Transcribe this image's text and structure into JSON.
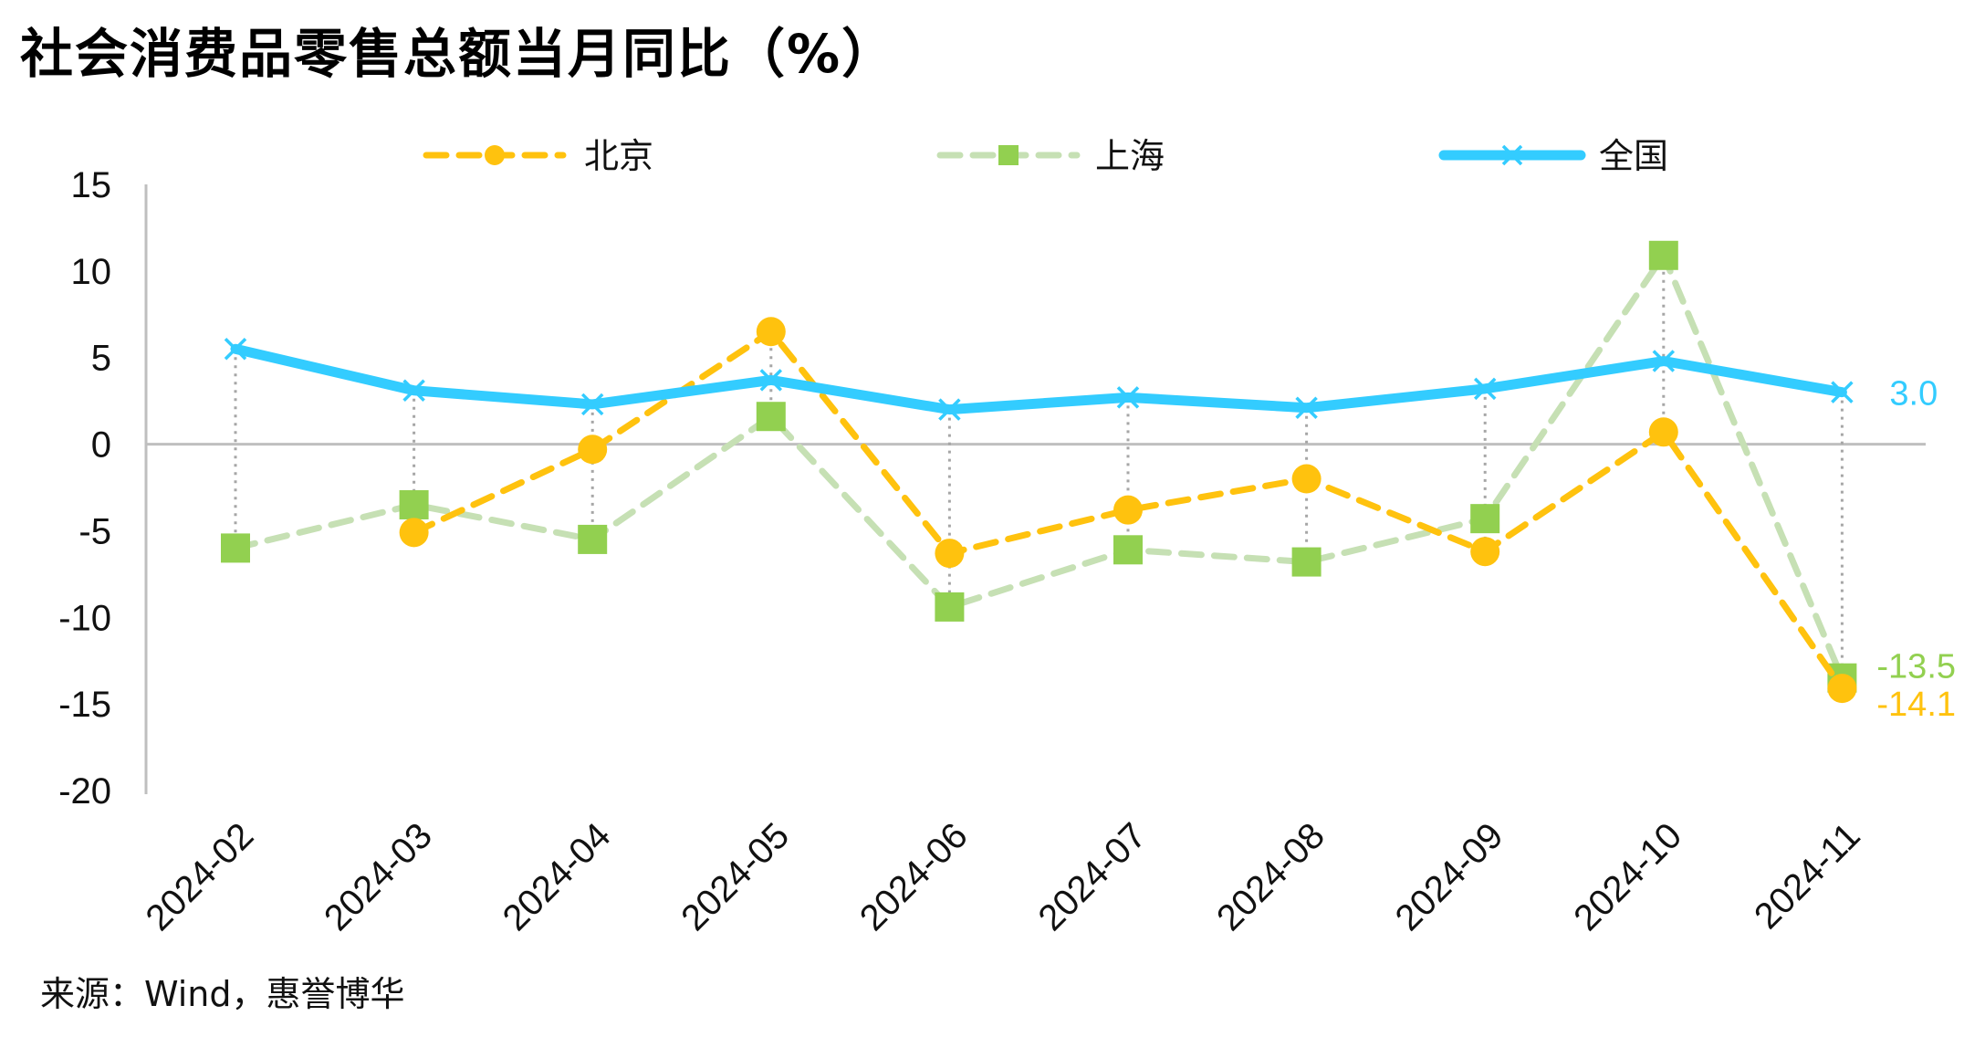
{
  "title": "社会消费品零售总额当月同比（%）",
  "source": "来源：Wind，惠誉博华",
  "colors": {
    "beijing": "#FFC20E",
    "shanghai": "#92D050",
    "shanghai_line": "#C6E0B4",
    "national": "#33CCFF",
    "axis": "#BFBFBF",
    "drop": "#A6A6A6"
  },
  "chart_data": {
    "type": "line",
    "title": "社会消费品零售总额当月同比（%）",
    "xlabel": "",
    "ylabel": "",
    "ylim": [
      -20,
      15
    ],
    "yticks": [
      15,
      10,
      5,
      0,
      -5,
      -10,
      -15,
      -20
    ],
    "categories": [
      "2024-02",
      "2024-03",
      "2024-04",
      "2024-05",
      "2024-06",
      "2024-07",
      "2024-08",
      "2024-09",
      "2024-10",
      "2024-11"
    ],
    "legend_position": "top",
    "series": [
      {
        "name": "北京",
        "key": "beijing",
        "style": "dashed",
        "marker": "circle",
        "values": [
          null,
          -5.1,
          -0.3,
          6.5,
          -6.3,
          -3.8,
          -2.0,
          -6.2,
          0.7,
          -14.1
        ],
        "end_label": "-14.1"
      },
      {
        "name": "上海",
        "key": "shanghai",
        "style": "dashed",
        "marker": "square",
        "values": [
          -6.0,
          -3.5,
          -5.5,
          1.6,
          -9.4,
          -6.1,
          -6.8,
          -4.3,
          10.9,
          -13.5
        ],
        "end_label": "-13.5"
      },
      {
        "name": "全国",
        "key": "national",
        "style": "solid",
        "marker": "x",
        "values": [
          5.5,
          3.1,
          2.3,
          3.7,
          2.0,
          2.7,
          2.1,
          3.2,
          4.8,
          3.0
        ],
        "end_label": "3.0"
      }
    ]
  }
}
